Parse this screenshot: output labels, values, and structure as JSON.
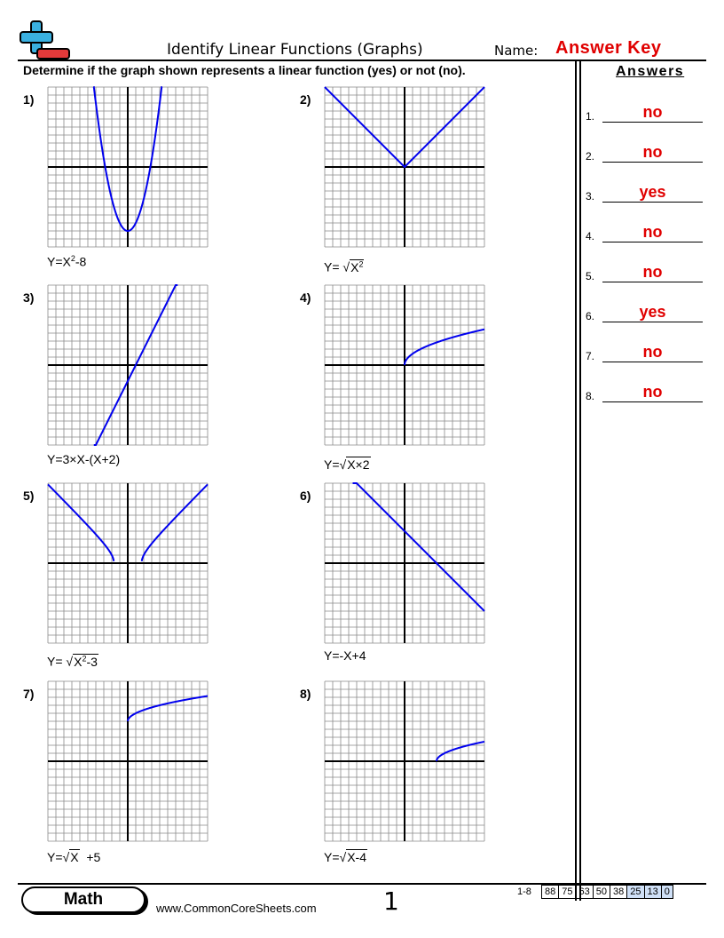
{
  "header": {
    "title": "Identify Linear Functions (Graphs)",
    "name_label": "Name:",
    "name_value": "Answer Key",
    "instructions": "Determine if the graph shown represents a linear function (yes) or not (no).",
    "logo_icon": "plus-minus-logo-icon"
  },
  "problems": [
    {
      "number": "1)",
      "eq_parts": [
        "Y=X",
        "2",
        "-8"
      ]
    },
    {
      "number": "2)",
      "eq_parts": [
        "Y=  ",
        "√",
        "X",
        "2"
      ]
    },
    {
      "number": "3)",
      "eq_parts": [
        "Y=3×X-(X+2)"
      ]
    },
    {
      "number": "4)",
      "eq_parts": [
        "Y=",
        "√",
        "X×2"
      ]
    },
    {
      "number": "5)",
      "eq_parts": [
        "Y=  ",
        "√",
        "X",
        "2",
        "-3"
      ]
    },
    {
      "number": "6)",
      "eq_parts": [
        "Y=-X+4"
      ]
    },
    {
      "number": "7)",
      "eq_parts": [
        "Y=",
        "√",
        "X",
        "  +5"
      ]
    },
    {
      "number": "8)",
      "eq_parts": [
        "Y=",
        "√",
        "X-4"
      ]
    }
  ],
  "answers": {
    "heading": "Answers",
    "items": [
      {
        "num": "1.",
        "value": "no"
      },
      {
        "num": "2.",
        "value": "no"
      },
      {
        "num": "3.",
        "value": "yes"
      },
      {
        "num": "4.",
        "value": "no"
      },
      {
        "num": "5.",
        "value": "no"
      },
      {
        "num": "6.",
        "value": "yes"
      },
      {
        "num": "7.",
        "value": "no"
      },
      {
        "num": "8.",
        "value": "no"
      }
    ]
  },
  "footer": {
    "subject": "Math",
    "website": "www.CommonCoreSheets.com",
    "page": "1",
    "score_range": "1-8",
    "scores": [
      "88",
      "75",
      "63",
      "50",
      "38",
      "25",
      "13",
      "0"
    ]
  },
  "colors": {
    "answer_red": "#e00000",
    "curve_blue": "#0000ee",
    "score_highlight": "#cfe0f7"
  },
  "chart_data": [
    {
      "type": "line",
      "function": "y = x^2 - 8",
      "xlim": [
        -10,
        10
      ],
      "ylim": [
        -10,
        10
      ]
    },
    {
      "type": "line",
      "function": "y = sqrt(x^2)",
      "xlim": [
        -10,
        10
      ],
      "ylim": [
        -10,
        10
      ]
    },
    {
      "type": "line",
      "function": "y = 3x - (x + 2)",
      "xlim": [
        -10,
        10
      ],
      "ylim": [
        -10,
        10
      ]
    },
    {
      "type": "line",
      "function": "y = sqrt(2x)",
      "xlim": [
        -10,
        10
      ],
      "ylim": [
        -10,
        10
      ]
    },
    {
      "type": "line",
      "function": "y = sqrt(x^2 - 3)",
      "xlim": [
        -10,
        10
      ],
      "ylim": [
        -10,
        10
      ]
    },
    {
      "type": "line",
      "function": "y = -x + 4",
      "xlim": [
        -10,
        10
      ],
      "ylim": [
        -10,
        10
      ]
    },
    {
      "type": "line",
      "function": "y = sqrt(x) + 5",
      "xlim": [
        -10,
        10
      ],
      "ylim": [
        -10,
        10
      ]
    },
    {
      "type": "line",
      "function": "y = sqrt(x - 4)",
      "xlim": [
        -10,
        10
      ],
      "ylim": [
        -10,
        10
      ]
    }
  ]
}
